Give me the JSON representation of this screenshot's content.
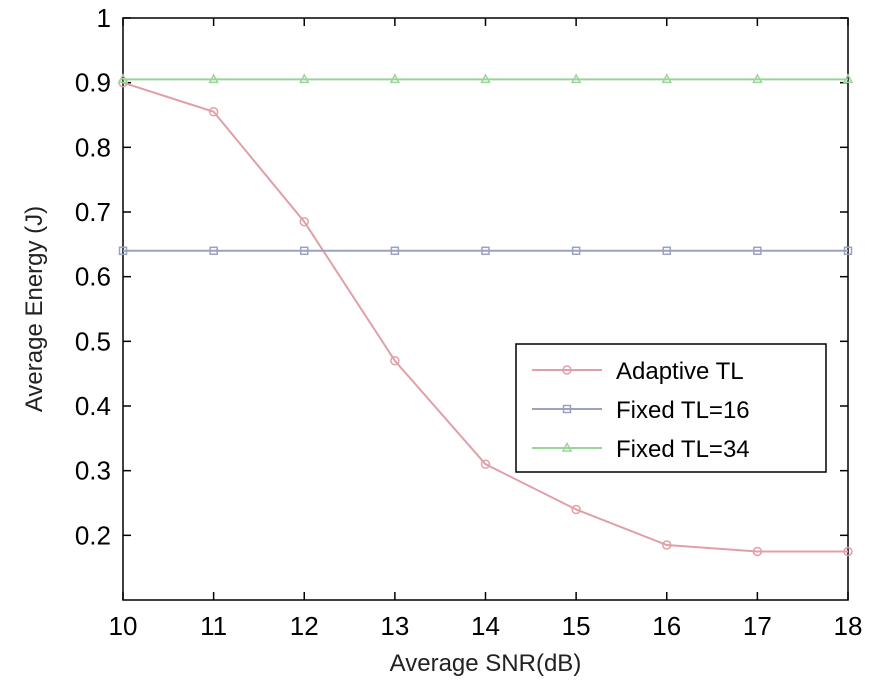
{
  "chart_data": {
    "type": "line",
    "title": "",
    "xlabel": "Average SNR(dB)",
    "ylabel": "Average Energy (J)",
    "xlim": [
      10,
      18
    ],
    "ylim": [
      0.1,
      1.0
    ],
    "xticks": [
      "10",
      "11",
      "12",
      "13",
      "14",
      "15",
      "16",
      "17",
      "18"
    ],
    "yticks": [
      "0.2",
      "0.3",
      "0.4",
      "0.5",
      "0.6",
      "0.7",
      "0.8",
      "0.9",
      "1"
    ],
    "ytick_values": [
      0.2,
      0.3,
      0.4,
      0.5,
      0.6,
      0.7,
      0.8,
      0.9,
      1.0
    ],
    "grid": false,
    "legend_position": "lower-right",
    "x": [
      10,
      11,
      12,
      13,
      14,
      15,
      16,
      17,
      18
    ],
    "series": [
      {
        "name": "Adaptive TL",
        "color": "#e0a0a8",
        "marker": "circle",
        "values": [
          0.9,
          0.855,
          0.685,
          0.47,
          0.31,
          0.24,
          0.185,
          0.175,
          0.175
        ]
      },
      {
        "name": "Fixed TL=16",
        "color": "#9aa2c0",
        "marker": "square",
        "values": [
          0.64,
          0.64,
          0.64,
          0.64,
          0.64,
          0.64,
          0.64,
          0.64,
          0.64
        ]
      },
      {
        "name": "Fixed TL=34",
        "color": "#9bd39b",
        "marker": "triangle",
        "values": [
          0.905,
          0.905,
          0.905,
          0.905,
          0.905,
          0.905,
          0.905,
          0.905,
          0.905
        ]
      }
    ]
  }
}
